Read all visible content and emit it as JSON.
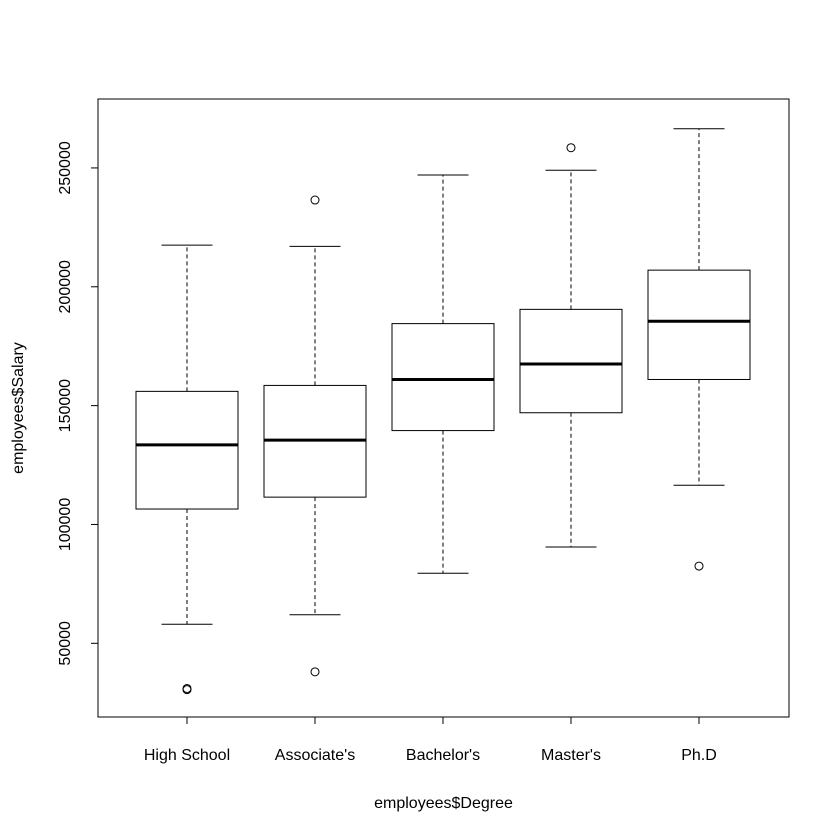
{
  "chart_data": {
    "type": "boxplot",
    "xlabel": "employees$Degree",
    "ylabel": "employees$Salary",
    "ylim": [
      19000,
      279000
    ],
    "yticks": [
      50000,
      100000,
      150000,
      200000,
      250000
    ],
    "ytick_labels": [
      "50000",
      "100000",
      "150000",
      "200000",
      "250000"
    ],
    "categories": [
      "High School",
      "Associate's",
      "Bachelor's",
      "Master's",
      "Ph.D"
    ],
    "boxes": [
      {
        "category": "High School",
        "whisker_low": 58000,
        "q1": 106500,
        "median": 133500,
        "q3": 156000,
        "whisker_high": 217500,
        "outliers": [
          30500,
          31000
        ]
      },
      {
        "category": "Associate's",
        "whisker_low": 62000,
        "q1": 111500,
        "median": 135500,
        "q3": 158500,
        "whisker_high": 217000,
        "outliers": [
          38000,
          236500
        ]
      },
      {
        "category": "Bachelor's",
        "whisker_low": 79500,
        "q1": 139500,
        "median": 161000,
        "q3": 184500,
        "whisker_high": 247000,
        "outliers": []
      },
      {
        "category": "Master's",
        "whisker_low": 90500,
        "q1": 147000,
        "median": 167500,
        "q3": 190500,
        "whisker_high": 249000,
        "outliers": [
          258500
        ]
      },
      {
        "category": "Ph.D",
        "whisker_low": 116500,
        "q1": 161000,
        "median": 185500,
        "q3": 207000,
        "whisker_high": 266500,
        "outliers": [
          82500
        ]
      }
    ],
    "colors": {
      "stroke": "#000000",
      "box_fill": "#ffffff",
      "background": "#ffffff"
    },
    "grid": false
  }
}
